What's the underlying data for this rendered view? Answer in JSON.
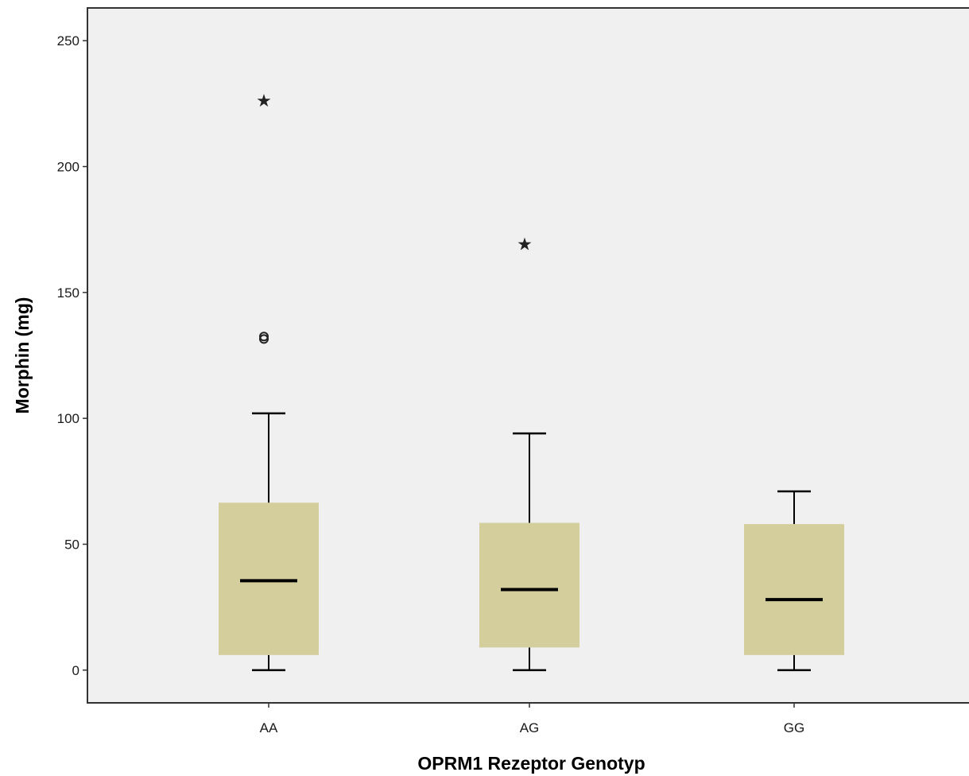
{
  "chart_data": {
    "type": "boxplot",
    "xlabel": "OPRM1 Rezeptor Genotyp",
    "ylabel": "Morphin (mg)",
    "categories": [
      "AA",
      "AG",
      "GG"
    ],
    "ylim": [
      -13,
      263
    ],
    "yticks": [
      0,
      50,
      100,
      150,
      200,
      250
    ],
    "grid": false,
    "boxes": [
      {
        "category": "AA",
        "whisker_low": 0,
        "q1": 6,
        "median": 35.5,
        "q3": 66.5,
        "whisker_high": 102,
        "outliers": [
          {
            "value": 131.5,
            "marker": "circle"
          },
          {
            "value": 132.5,
            "marker": "circle"
          },
          {
            "value": 226,
            "marker": "star"
          }
        ]
      },
      {
        "category": "AG",
        "whisker_low": 0,
        "q1": 9,
        "median": 32,
        "q3": 58.5,
        "whisker_high": 94,
        "outliers": [
          {
            "value": 169,
            "marker": "star"
          }
        ]
      },
      {
        "category": "GG",
        "whisker_low": 0,
        "q1": 6,
        "median": 28,
        "q3": 58,
        "whisker_high": 71,
        "outliers": []
      }
    ],
    "colors": {
      "plot_background": "#f0f0f0",
      "box_fill": "#d3ce9b",
      "line": "#000000"
    }
  }
}
